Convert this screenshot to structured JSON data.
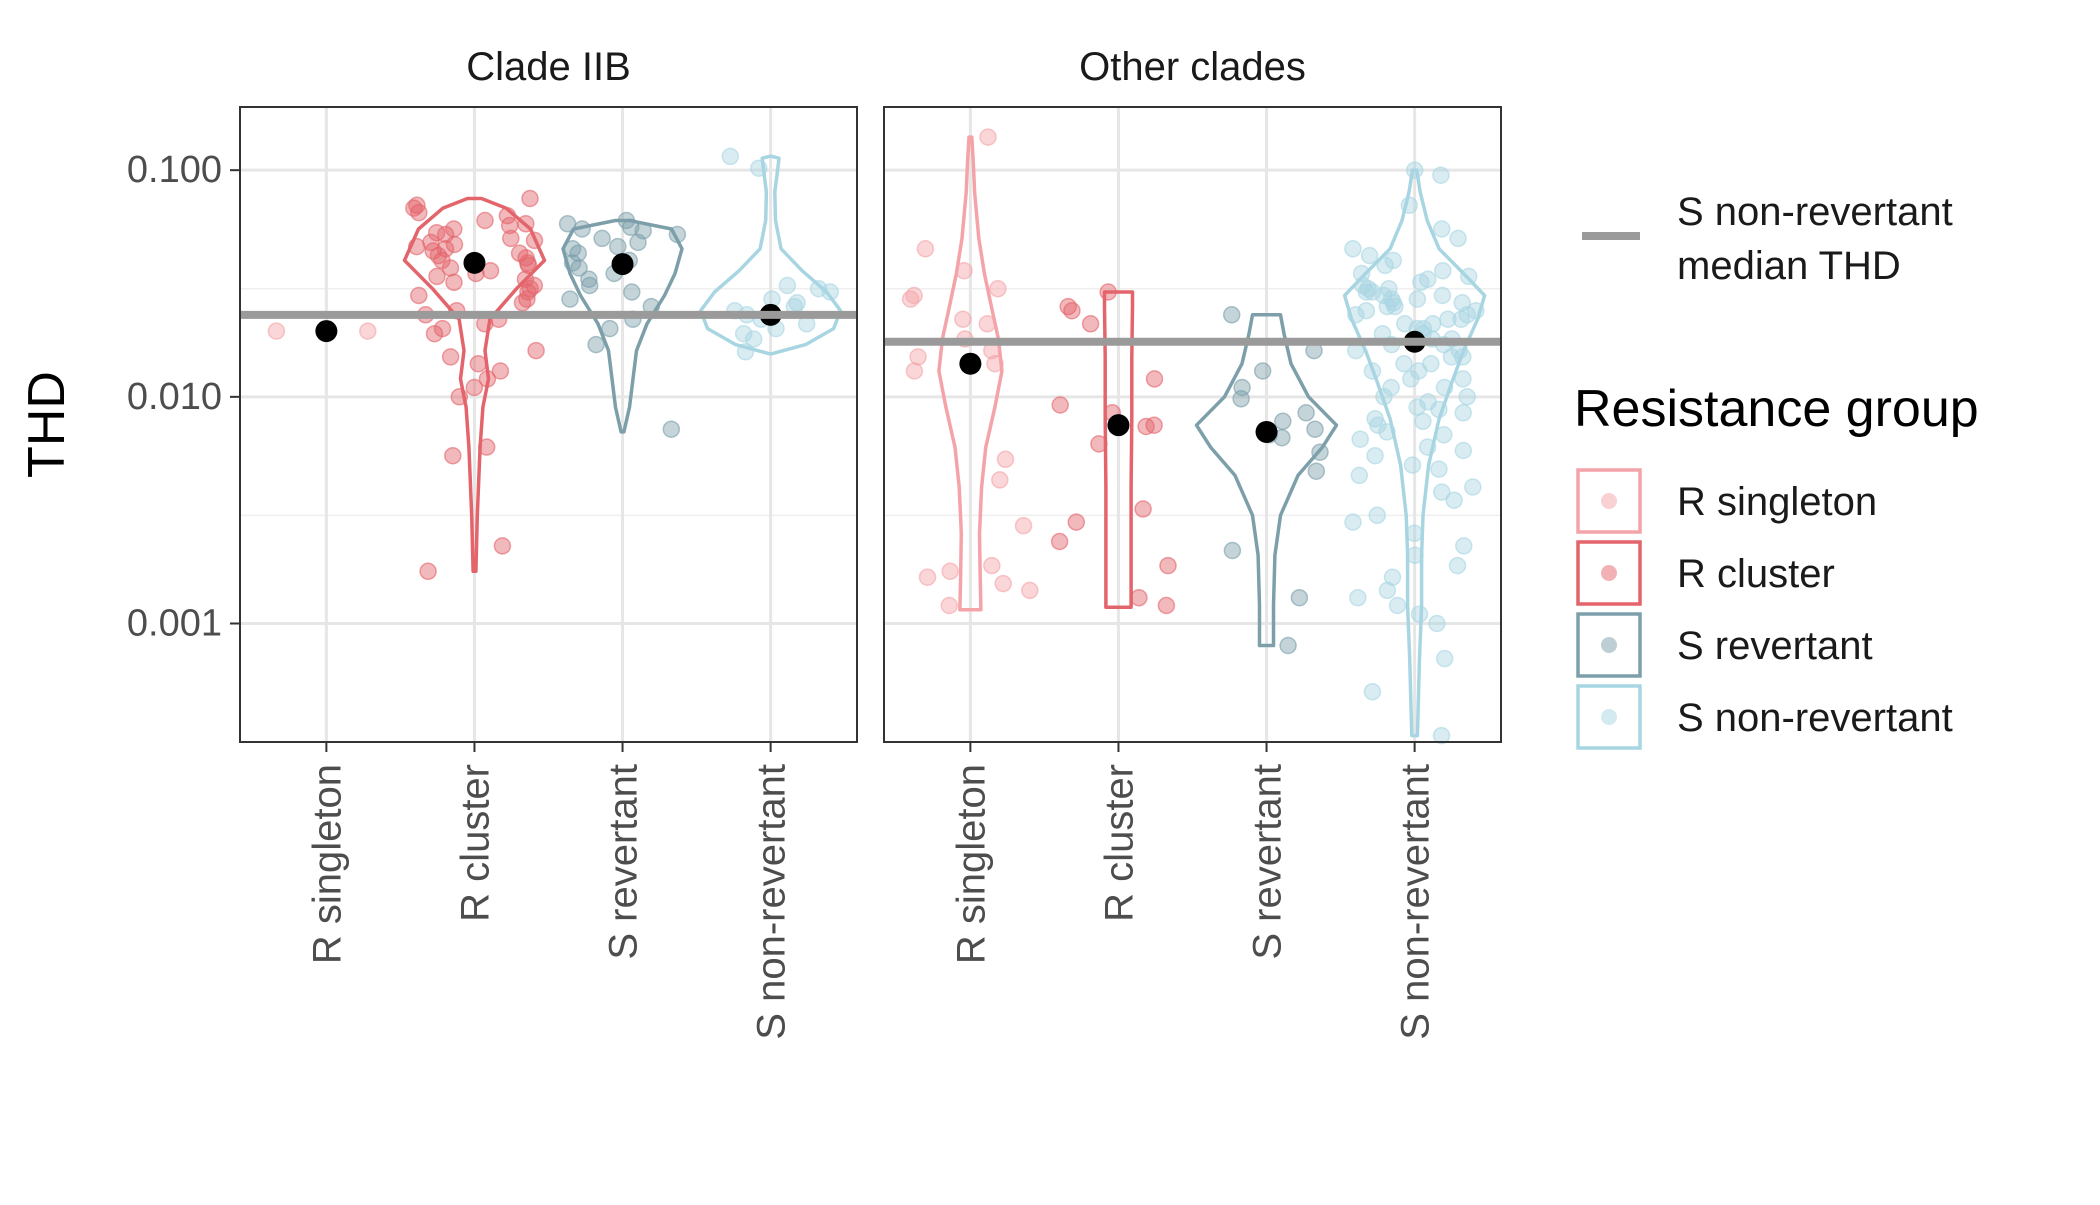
{
  "chart_data": {
    "type": "violin",
    "ylabel": "THD",
    "y_scale": "log10",
    "ylim": [
      0.0003,
      0.19
    ],
    "y_ticks": [
      0.1,
      0.01,
      0.001
    ],
    "y_tick_labels": [
      "0.100",
      "0.010",
      "0.001"
    ],
    "grid": true,
    "categories": [
      "R singleton",
      "R cluster",
      "S revertant",
      "S non-revertant"
    ],
    "legend": {
      "position": "right",
      "line_label": [
        "S non-revertant",
        "median THD"
      ],
      "title": "Resistance group",
      "entries": [
        {
          "label": "R singleton",
          "color": "#f4a3a8"
        },
        {
          "label": "R cluster",
          "color": "#e3646b"
        },
        {
          "label": "S revertant",
          "color": "#7c9faa"
        },
        {
          "label": "S non-revertant",
          "color": "#a8d5e2"
        }
      ]
    },
    "reference_line_color": "#9a9a9a",
    "median_marker_color": "#000000",
    "panels": [
      {
        "title": "Clade IIB",
        "reference_median": 0.023,
        "groups": [
          {
            "category": "R singleton",
            "median": 0.0195,
            "violin": null,
            "points": [
              0.0195,
              0.0195
            ]
          },
          {
            "category": "R cluster",
            "median": 0.039,
            "violin": {
              "range": [
                0.0017,
                0.075
              ],
              "profile": [
                [
                  0.0017,
                  0.02
                ],
                [
                  0.003,
                  0.04
                ],
                [
                  0.006,
                  0.08
                ],
                [
                  0.009,
                  0.12
                ],
                [
                  0.012,
                  0.2
                ],
                [
                  0.016,
                  0.15
                ],
                [
                  0.022,
                  0.22
                ],
                [
                  0.03,
                  0.6
                ],
                [
                  0.04,
                  1.0
                ],
                [
                  0.055,
                  0.8
                ],
                [
                  0.068,
                  0.45
                ],
                [
                  0.075,
                  0.1
                ]
              ]
            },
            "points": [
              0.075,
              0.07,
              0.068,
              0.065,
              0.063,
              0.06,
              0.058,
              0.057,
              0.055,
              0.053,
              0.052,
              0.05,
              0.049,
              0.048,
              0.047,
              0.046,
              0.045,
              0.044,
              0.043,
              0.042,
              0.041,
              0.04,
              0.039,
              0.038,
              0.037,
              0.036,
              0.035,
              0.034,
              0.033,
              0.032,
              0.031,
              0.03,
              0.029,
              0.028,
              0.027,
              0.026,
              0.024,
              0.023,
              0.022,
              0.021,
              0.02,
              0.019,
              0.016,
              0.015,
              0.014,
              0.013,
              0.012,
              0.011,
              0.01,
              0.006,
              0.0055,
              0.0022,
              0.0017
            ]
          },
          {
            "category": "S revertant",
            "median": 0.0385,
            "violin": {
              "range": [
                0.007,
                0.06
              ],
              "profile": [
                [
                  0.007,
                  0.02
                ],
                [
                  0.009,
                  0.1
                ],
                [
                  0.012,
                  0.15
                ],
                [
                  0.016,
                  0.2
                ],
                [
                  0.021,
                  0.35
                ],
                [
                  0.028,
                  0.6
                ],
                [
                  0.035,
                  0.75
                ],
                [
                  0.045,
                  0.85
                ],
                [
                  0.055,
                  0.7
                ],
                [
                  0.06,
                  0.1
                ]
              ]
            },
            "points": [
              0.06,
              0.058,
              0.056,
              0.055,
              0.054,
              0.052,
              0.05,
              0.048,
              0.046,
              0.045,
              0.043,
              0.04,
              0.039,
              0.037,
              0.035,
              0.033,
              0.031,
              0.029,
              0.027,
              0.025,
              0.022,
              0.02,
              0.017,
              0.0072
            ]
          },
          {
            "category": "S non-revertant",
            "median": 0.023,
            "violin": {
              "range": [
                0.0155,
                0.115
              ],
              "profile": [
                [
                  0.0155,
                  0.02
                ],
                [
                  0.017,
                  0.5
                ],
                [
                  0.02,
                  0.9
                ],
                [
                  0.024,
                  1.0
                ],
                [
                  0.029,
                  0.8
                ],
                [
                  0.036,
                  0.45
                ],
                [
                  0.045,
                  0.15
                ],
                [
                  0.06,
                  0.07
                ],
                [
                  0.08,
                  0.06
                ],
                [
                  0.1,
                  0.1
                ],
                [
                  0.113,
                  0.12
                ],
                [
                  0.115,
                  0.02
                ]
              ]
            },
            "points": [
              0.115,
              0.102,
              0.031,
              0.03,
              0.029,
              0.027,
              0.026,
              0.025,
              0.024,
              0.023,
              0.022,
              0.021,
              0.02,
              0.019,
              0.018,
              0.0158
            ]
          }
        ]
      },
      {
        "title": "Other clades",
        "reference_median": 0.0175,
        "groups": [
          {
            "category": "R singleton",
            "median": 0.014,
            "violin": {
              "range": [
                0.00115,
                0.14
              ],
              "profile": [
                [
                  0.00115,
                  0.15
                ],
                [
                  0.0016,
                  0.14
                ],
                [
                  0.0025,
                  0.13
                ],
                [
                  0.004,
                  0.16
                ],
                [
                  0.006,
                  0.22
                ],
                [
                  0.009,
                  0.35
                ],
                [
                  0.013,
                  0.45
                ],
                [
                  0.018,
                  0.4
                ],
                [
                  0.025,
                  0.3
                ],
                [
                  0.035,
                  0.2
                ],
                [
                  0.05,
                  0.12
                ],
                [
                  0.08,
                  0.06
                ],
                [
                  0.11,
                  0.04
                ],
                [
                  0.14,
                  0.02
                ]
              ]
            },
            "points": [
              0.14,
              0.045,
              0.036,
              0.03,
              0.028,
              0.027,
              0.022,
              0.021,
              0.018,
              0.016,
              0.015,
              0.014,
              0.013,
              0.0053,
              0.0043,
              0.0027,
              0.0018,
              0.0017,
              0.0016,
              0.0015,
              0.0014,
              0.0012
            ]
          },
          {
            "category": "R cluster",
            "median": 0.0075,
            "violin": {
              "range": [
                0.00118,
                0.029
              ],
              "profile": [
                [
                  0.00118,
                  0.18
                ],
                [
                  0.002,
                  0.18
                ],
                [
                  0.004,
                  0.18
                ],
                [
                  0.008,
                  0.19
                ],
                [
                  0.015,
                  0.19
                ],
                [
                  0.025,
                  0.2
                ],
                [
                  0.029,
                  0.2
                ]
              ]
            },
            "points": [
              0.029,
              0.025,
              0.024,
              0.021,
              0.012,
              0.0092,
              0.0085,
              0.0075,
              0.0074,
              0.0062,
              0.0032,
              0.0028,
              0.0023,
              0.0018,
              0.0013,
              0.0012
            ]
          },
          {
            "category": "S revertant",
            "median": 0.007,
            "violin": {
              "range": [
                0.0008,
                0.023
              ],
              "profile": [
                [
                  0.0008,
                  0.1
                ],
                [
                  0.0012,
                  0.1
                ],
                [
                  0.002,
                  0.12
                ],
                [
                  0.003,
                  0.2
                ],
                [
                  0.0045,
                  0.45
                ],
                [
                  0.006,
                  0.8
                ],
                [
                  0.0075,
                  1.0
                ],
                [
                  0.01,
                  0.6
                ],
                [
                  0.014,
                  0.35
                ],
                [
                  0.019,
                  0.25
                ],
                [
                  0.023,
                  0.2
                ]
              ]
            },
            "points": [
              0.023,
              0.016,
              0.013,
              0.011,
              0.0098,
              0.0085,
              0.0078,
              0.0072,
              0.0068,
              0.0066,
              0.0057,
              0.0047,
              0.0021,
              0.0013,
              0.0008
            ]
          },
          {
            "category": "S non-revertant",
            "median": 0.0175,
            "violin": {
              "range": [
                0.00032,
                0.1
              ],
              "profile": [
                [
                  0.00032,
                  0.04
                ],
                [
                  0.0007,
                  0.07
                ],
                [
                  0.0012,
                  0.1
                ],
                [
                  0.002,
                  0.1
                ],
                [
                  0.003,
                  0.12
                ],
                [
                  0.005,
                  0.2
                ],
                [
                  0.008,
                  0.35
                ],
                [
                  0.012,
                  0.55
                ],
                [
                  0.016,
                  0.7
                ],
                [
                  0.022,
                  0.9
                ],
                [
                  0.028,
                  1.0
                ],
                [
                  0.035,
                  0.7
                ],
                [
                  0.045,
                  0.35
                ],
                [
                  0.06,
                  0.18
                ],
                [
                  0.08,
                  0.08
                ],
                [
                  0.1,
                  0.03
                ]
              ]
            },
            "points": [
              0.1,
              0.095,
              0.07,
              0.055,
              0.05,
              0.045,
              0.042,
              0.04,
              0.038,
              0.036,
              0.035,
              0.034,
              0.033,
              0.032,
              0.031,
              0.03,
              0.03,
              0.029,
              0.029,
              0.028,
              0.028,
              0.027,
              0.027,
              0.026,
              0.026,
              0.025,
              0.025,
              0.024,
              0.024,
              0.023,
              0.023,
              0.022,
              0.022,
              0.021,
              0.021,
              0.02,
              0.02,
              0.019,
              0.019,
              0.018,
              0.018,
              0.017,
              0.017,
              0.016,
              0.016,
              0.015,
              0.015,
              0.014,
              0.014,
              0.013,
              0.013,
              0.012,
              0.012,
              0.011,
              0.011,
              0.01,
              0.01,
              0.0095,
              0.009,
              0.0088,
              0.0085,
              0.008,
              0.0078,
              0.0075,
              0.007,
              0.0068,
              0.0065,
              0.006,
              0.0058,
              0.0055,
              0.005,
              0.0048,
              0.0045,
              0.004,
              0.0038,
              0.0035,
              0.003,
              0.0028,
              0.0025,
              0.0022,
              0.002,
              0.0018,
              0.0016,
              0.0014,
              0.0013,
              0.0012,
              0.0011,
              0.001,
              0.0007,
              0.0005,
              0.00032
            ]
          }
        ]
      }
    ]
  }
}
